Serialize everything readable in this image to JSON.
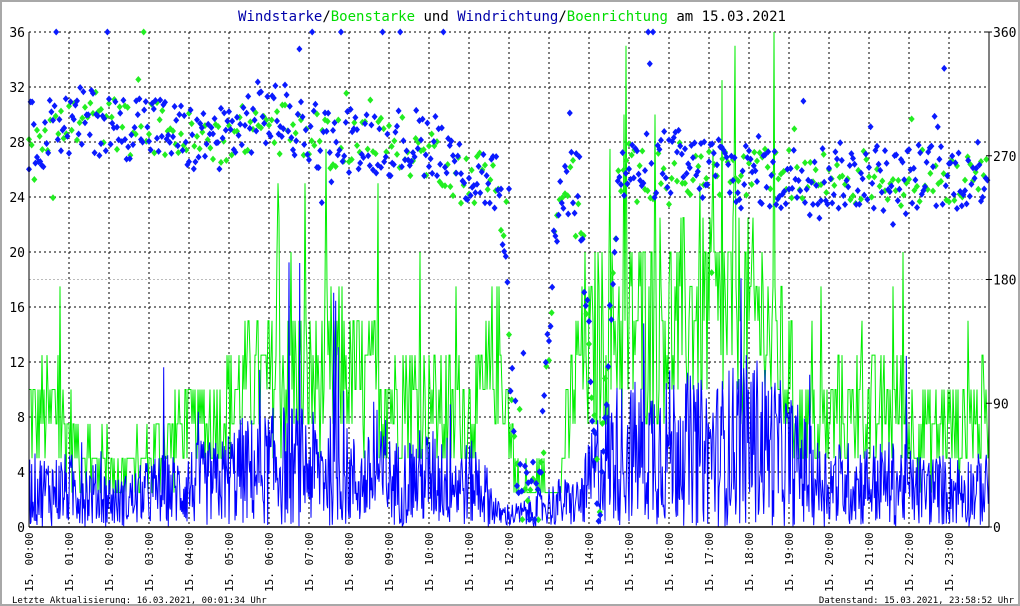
{
  "chart_data": {
    "type": "line",
    "title_parts": [
      {
        "text": "Windstarke",
        "color": "#0000aa"
      },
      {
        "text": "/",
        "color": "#000000"
      },
      {
        "text": "Boenstarke",
        "color": "#00dd00"
      },
      {
        "text": " und ",
        "color": "#000000"
      },
      {
        "text": "Windrichtung",
        "color": "#0000aa"
      },
      {
        "text": "/",
        "color": "#000000"
      },
      {
        "text": "Boenrichtung",
        "color": "#00dd00"
      },
      {
        "text": " am 15.03.2021",
        "color": "#000000"
      }
    ],
    "ylim_left": [
      0,
      36
    ],
    "yticks_left": [
      "0",
      "4",
      "8",
      "12",
      "16",
      "20",
      "24",
      "28",
      "32",
      "36"
    ],
    "ylim_right": [
      0,
      360
    ],
    "yticks_right": [
      "0",
      "90",
      "180",
      "270",
      "360"
    ],
    "xticks": [
      "15. 00:00",
      "15. 01:00",
      "15. 02:00",
      "15. 03:00",
      "15. 04:00",
      "15. 05:00",
      "15. 06:00",
      "15. 07:00",
      "15. 08:00",
      "15. 09:00",
      "15. 10:00",
      "15. 11:00",
      "15. 12:00",
      "15. 13:00",
      "15. 14:00",
      "15. 15:00",
      "15. 16:00",
      "15. 17:00",
      "15. 18:00",
      "15. 19:00",
      "15. 20:00",
      "15. 21:00",
      "15. 22:00",
      "15. 23:00"
    ],
    "x_unit": "half-hour intervals from 00:00 to 24:00",
    "series": [
      {
        "name": "Windstarke",
        "color": "#0000ff",
        "values": [
          3,
          3,
          3,
          2.5,
          2,
          2.5,
          3,
          3,
          3.5,
          3.5,
          4.5,
          4.5,
          5,
          5,
          4.5,
          4.5,
          3.5,
          4,
          3.5,
          4,
          4,
          3.5,
          3.5,
          1,
          1,
          1.5,
          2,
          2,
          5,
          6,
          6,
          6.5,
          6.5,
          6,
          6,
          7,
          7,
          6,
          5,
          3.5,
          3.5,
          3.5,
          3.5,
          3.5,
          3,
          3,
          3,
          3
        ]
      },
      {
        "name": "Boenstarke",
        "color": "#00ee00",
        "values": [
          9,
          9,
          6,
          5,
          4.5,
          5,
          6,
          8,
          8,
          9,
          11,
          12,
          12,
          12,
          12,
          13,
          12,
          11,
          11,
          10,
          10,
          9,
          10,
          14,
          3,
          3,
          3,
          14,
          15,
          16,
          16,
          17,
          16,
          18,
          17,
          18,
          17,
          15,
          8,
          8,
          9,
          9,
          9,
          10,
          8,
          8,
          8,
          9
        ]
      },
      {
        "name": "Windrichtung",
        "color": "#0000ff",
        "values": [
          285,
          290,
          295,
          295,
          290,
          295,
          290,
          285,
          280,
          285,
          290,
          300,
          300,
          290,
          285,
          280,
          285,
          280,
          280,
          280,
          280,
          260,
          255,
          250,
          30,
          20,
          250,
          250,
          15,
          255,
          260,
          265,
          265,
          260,
          265,
          255,
          260,
          250,
          255,
          255,
          255,
          255,
          255,
          250,
          255,
          255,
          255,
          260
        ]
      },
      {
        "name": "Boenrichtung",
        "color": "#00ee00",
        "values": [
          290,
          290,
          295,
          300,
          290,
          290,
          290,
          285,
          280,
          285,
          285,
          295,
          290,
          285,
          280,
          280,
          285,
          280,
          280,
          270,
          270,
          255,
          255,
          250,
          25,
          15,
          255,
          250,
          20,
          255,
          255,
          260,
          260,
          255,
          260,
          255,
          255,
          255,
          255,
          255,
          255,
          255,
          255,
          250,
          255,
          255,
          255,
          265
        ]
      }
    ],
    "grid": true,
    "reference_line_left": 18
  },
  "footer": {
    "left": "Letzte Aktualisierung: 16.03.2021, 00:01:34 Uhr",
    "right": "Datenstand: 15.03.2021, 23:58:52 Uhr"
  }
}
